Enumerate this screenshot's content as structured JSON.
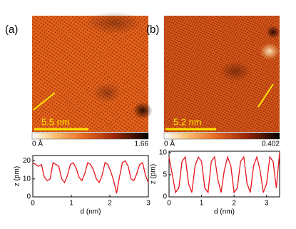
{
  "images": [
    {
      "panel_label": "(a)",
      "scale_bar": "5.5 nm",
      "colorbar_min": "0 Å",
      "colorbar_max": 1.66
    },
    {
      "panel_label": "(b)",
      "scale_bar": "5.2 nm",
      "colorbar_min": "0 Å",
      "colorbar_max": 0.402
    }
  ],
  "chart_data": [
    {
      "type": "line",
      "xlabel": "d (nm)",
      "ylabel": "z (pm)",
      "color": "#e8141c",
      "x": [
        0,
        0.075,
        0.15,
        0.225,
        0.3,
        0.375,
        0.45,
        0.525,
        0.6,
        0.675,
        0.75,
        0.825,
        0.9,
        0.975,
        1.05,
        1.125,
        1.2,
        1.275,
        1.35,
        1.425,
        1.5,
        1.575,
        1.65,
        1.725,
        1.8,
        1.875,
        1.95,
        2.025,
        2.1,
        2.175,
        2.25,
        2.325,
        2.4,
        2.475,
        2.55,
        2.625,
        2.7,
        2.775,
        2.85,
        2.925,
        3
      ],
      "values": [
        19,
        18,
        17,
        18,
        11,
        9,
        10,
        19,
        18,
        17,
        10,
        8,
        12,
        18,
        19,
        16,
        11,
        9,
        13,
        19,
        18,
        15,
        10,
        8,
        12,
        19,
        18,
        14,
        9,
        2,
        11,
        19,
        20,
        17,
        10,
        9,
        13,
        18,
        19,
        12,
        8
      ],
      "xlim": [
        0,
        3
      ],
      "ylim": [
        0,
        23
      ],
      "xticks": [
        0,
        1,
        2,
        3
      ],
      "yticks": [
        0,
        10,
        20
      ]
    },
    {
      "type": "line",
      "xlabel": "d (nm)",
      "ylabel": "z (pm)",
      "color": "#e8141c",
      "x": [
        0,
        0.1,
        0.2,
        0.3,
        0.4,
        0.5,
        0.6,
        0.7,
        0.8,
        0.9,
        1,
        1.1,
        1.2,
        1.3,
        1.4,
        1.5,
        1.6,
        1.7,
        1.8,
        1.9,
        2,
        2.1,
        2.2,
        2.3,
        2.4,
        2.5,
        2.6,
        2.7,
        2.8,
        2.9,
        3,
        3.1,
        3.2,
        3.3,
        3.4
      ],
      "values": [
        9,
        5,
        1,
        2,
        8,
        9,
        3,
        1,
        7,
        9,
        8,
        2,
        1,
        8,
        9,
        4,
        1,
        6,
        9,
        7,
        1,
        2,
        8,
        9,
        3,
        1,
        7,
        9,
        6,
        1,
        3,
        9,
        8,
        2,
        10
      ],
      "xlim": [
        0,
        3.4
      ],
      "ylim": [
        0,
        10.3
      ],
      "xticks": [
        0,
        1,
        2,
        3
      ],
      "yticks": [
        0,
        5,
        10
      ]
    }
  ]
}
